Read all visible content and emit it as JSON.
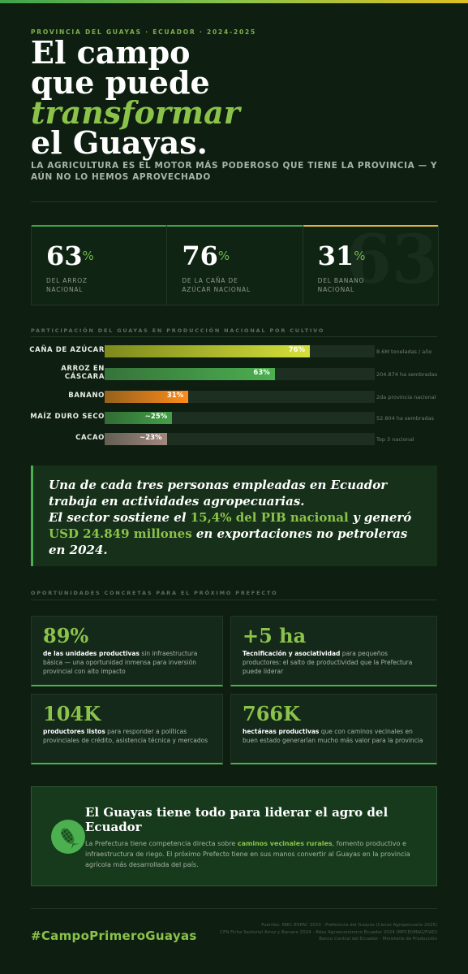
{
  "kicker": "PROVINCIA DEL GUAYAS · ECUADOR · 2024-2025",
  "headline": {
    "line1": "El campo",
    "line2": "que puede",
    "line3": "transformar",
    "line4": "el Guayas."
  },
  "subhead": "LA AGRICULTURA ES EL MOTOR MÁS PODEROSO QUE TIENE LA PROVINCIA — Y AÚN NO LO HEMOS APROVECHADO",
  "stats": [
    {
      "value": "63",
      "unit": "%",
      "label1": "DEL ARROZ",
      "label2": "NACIONAL"
    },
    {
      "value": "76",
      "unit": "%",
      "label1": "DE LA CAÑA DE",
      "label2": "AZÚCAR NACIONAL"
    },
    {
      "value": "31",
      "unit": "%",
      "label1": "DEL BANANO",
      "label2": "NACIONAL"
    }
  ],
  "stats_ghost": "63",
  "bars_title": "PARTICIPACIÓN DEL GUAYAS EN PRODUCCIÓN NACIONAL POR CULTIVO",
  "chart_data": {
    "type": "bar",
    "title": "PARTICIPACIÓN DEL GUAYAS EN PRODUCCIÓN NACIONAL POR CULTIVO",
    "categories": [
      "CAÑA DE AZÚCAR",
      "ARROZ EN CÁSCARA",
      "BANANO",
      "MAÍZ DURO SECO",
      "CACAO"
    ],
    "values": [
      76,
      63,
      31,
      25,
      23
    ],
    "value_labels": [
      "76%",
      "63%",
      "31%",
      "~25%",
      "~23%"
    ],
    "notes": [
      "8.6M toneladas / año",
      "204.874 ha sembradas",
      "2da provincia nacional",
      "52.804 ha sembradas",
      "Top 3 nacional"
    ],
    "colors": [
      "#d4e03a",
      "#4caf50",
      "#ff8c1a",
      "#43a047",
      "#a1887f"
    ],
    "ylim": [
      0,
      100
    ]
  },
  "bar_label_lines": [
    [
      "CAÑA DE AZÚCAR"
    ],
    [
      "ARROZ EN",
      "CÁSCARA"
    ],
    [
      "BANANO"
    ],
    [
      "MAÍZ DURO SECO"
    ],
    [
      "CACAO"
    ]
  ],
  "quote": {
    "part1": "Una de cada tres personas empleadas en Ecuador trabaja en actividades agropecuarias.",
    "part2": "El sector sostiene el",
    "hl1": "15,4% del PIB nacional",
    "part3": "y generó",
    "hl2": "USD 24.849 millones",
    "part4": "en exportaciones no petroleras en 2024."
  },
  "opportunities_title": "OPORTUNIDADES CONCRETAS PARA EL PRÓXIMO PREFECTO",
  "cards": [
    {
      "big": "89%",
      "bold": "de las unidades productivas",
      "rest": " sin infraestructura básica — una oportunidad inmensa para inversión provincial con alto impacto"
    },
    {
      "big": "+5 ha",
      "bold": "Tecnificación y asociatividad",
      "rest": " para pequeños productores: el salto de productividad que la Prefectura puede liderar"
    },
    {
      "big": "104K",
      "bold": "productores listos",
      "rest": " para responder a políticas provinciales de crédito, asistencia técnica y mercados"
    },
    {
      "big": "766K",
      "bold": "hectáreas productivas",
      "rest": " que con caminos vecinales en buen estado generarían mucho más valor para la provincia"
    }
  ],
  "cta": {
    "title": "El Guayas tiene todo para liderar el agro del Ecuador",
    "body_pre": "La Prefectura tiene competencia directa sobre ",
    "body_hl": "caminos vecinales rurales",
    "body_post": ", fomento productivo e infraestructura de riego. El próximo Prefecto tiene en sus manos convertir al Guayas en la provincia agrícola más desarrollada del país.",
    "icon": "corn-icon"
  },
  "hashtag": "#CampoPrimeroGuayas",
  "sources": [
    "Fuentes: INEC-ESPAC 2023 · Prefectura del Guayas (Censo Agropecuario 2025)",
    "CFN Ficha Sectorial Arroz y Banano 2024 · Atlas Agroeconómico Ecuador 2024 (MPCEI/MAG/FIAD)",
    "Banco Central del Ecuador · Ministerio de Producción"
  ]
}
